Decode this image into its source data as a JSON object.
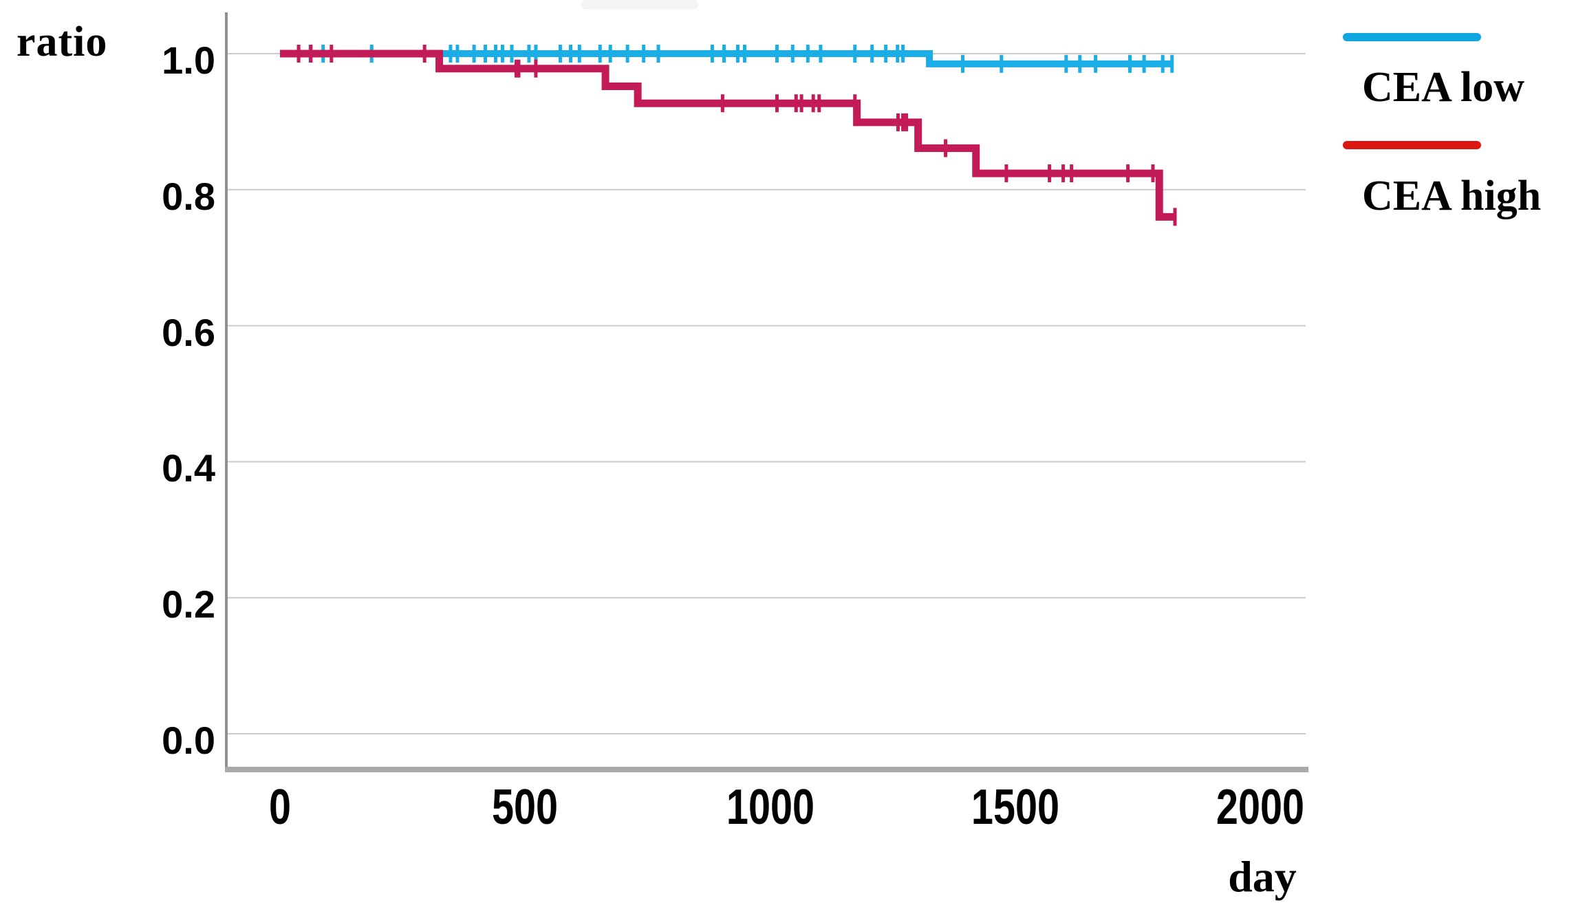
{
  "chart_data": {
    "type": "line",
    "subtype": "kaplan-meier-step-curve",
    "title": "",
    "ylabel": "ratio",
    "xlabel": "day",
    "x_ticks": [
      "0",
      "500",
      "1000",
      "1500",
      "2000"
    ],
    "y_ticks": [
      "1.0",
      "0.8",
      "0.6",
      "0.4",
      "0.2",
      "0.0"
    ],
    "xlim": [
      0,
      2100
    ],
    "ylim": [
      0,
      1.06
    ],
    "grid": "horizontal",
    "grid_color": "#cacaca",
    "axis_color": "#909090",
    "bottom_axis_color": "#a9a9a9",
    "legend_position": "right-top",
    "series": [
      {
        "name": "CEA low",
        "color": "#1bade6",
        "legend_color": "#10a7e0",
        "line_width": 10,
        "steps": [
          [
            0,
            1.0
          ],
          [
            1325,
            1.0
          ],
          [
            1325,
            0.985
          ],
          [
            1820,
            0.985
          ]
        ],
        "censor_days": [
          38,
          62,
          88,
          187,
          348,
          362,
          396,
          419,
          440,
          454,
          473,
          508,
          522,
          572,
          593,
          611,
          653,
          674,
          709,
          742,
          772,
          882,
          906,
          934,
          948,
          1014,
          1046,
          1077,
          1103,
          1173,
          1208,
          1236,
          1260,
          1271,
          1393,
          1472,
          1604,
          1632,
          1664,
          1734,
          1763,
          1801,
          1820
        ]
      },
      {
        "name": "CEA high",
        "color": "#c31a58",
        "legend_color": "#dc1712",
        "line_width": 11,
        "steps": [
          [
            0,
            1.0
          ],
          [
            325,
            1.0
          ],
          [
            325,
            0.978
          ],
          [
            664,
            0.978
          ],
          [
            664,
            0.952
          ],
          [
            730,
            0.952
          ],
          [
            730,
            0.927
          ],
          [
            1177,
            0.927
          ],
          [
            1177,
            0.899
          ],
          [
            1302,
            0.899
          ],
          [
            1302,
            0.861
          ],
          [
            1420,
            0.861
          ],
          [
            1420,
            0.824
          ],
          [
            1794,
            0.824
          ],
          [
            1794,
            0.76
          ],
          [
            1826,
            0.76
          ]
        ],
        "censor_days": [
          38,
          63,
          105,
          295,
          482,
          487,
          522,
          903,
          1014,
          1053,
          1064,
          1088,
          1100,
          1173,
          1261,
          1271,
          1278,
          1358,
          1482,
          1570,
          1598,
          1615,
          1730,
          1781,
          1826
        ]
      }
    ]
  },
  "legend": {
    "items": [
      {
        "label": "CEA low"
      },
      {
        "label": "CEA high"
      }
    ]
  }
}
